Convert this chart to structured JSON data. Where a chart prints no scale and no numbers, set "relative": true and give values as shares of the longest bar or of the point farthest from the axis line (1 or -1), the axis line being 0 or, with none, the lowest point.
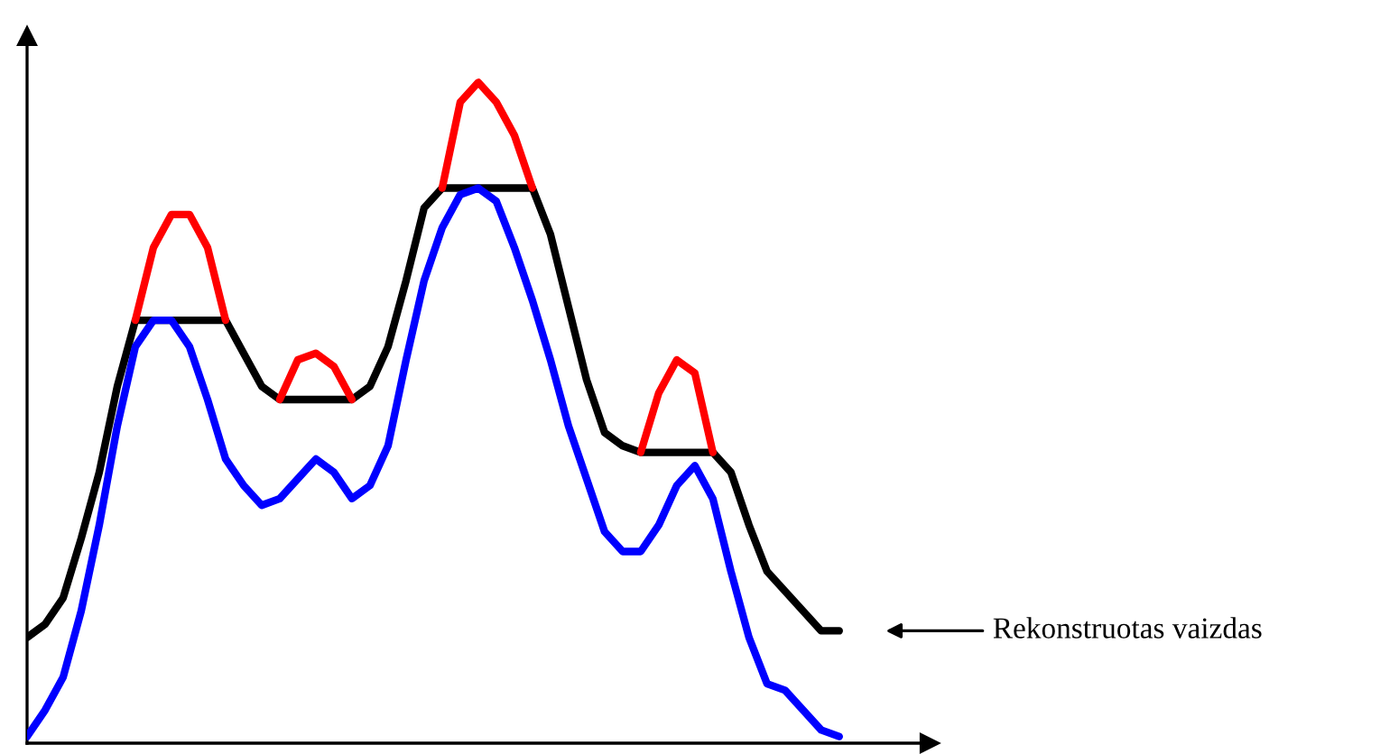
{
  "chart_data": {
    "type": "line",
    "relative": true,
    "categories": [
      null,
      null,
      null,
      null,
      null,
      null,
      null,
      null,
      null,
      null,
      null,
      null,
      null,
      null,
      null,
      null,
      null,
      null,
      null,
      null,
      null,
      null,
      null,
      null,
      null,
      null,
      null,
      null,
      null,
      null,
      null,
      null,
      null,
      null,
      null,
      null,
      null,
      null,
      null,
      null,
      null,
      null,
      null,
      null,
      null,
      null
    ],
    "series": [
      {
        "color": "#ff0000",
        "values": [
          null,
          null,
          null,
          null,
          null,
          null,
          0.64,
          0.75,
          0.8,
          0.8,
          0.75,
          0.64,
          null,
          null,
          0.52,
          0.58,
          0.59,
          0.57,
          0.52,
          null,
          null,
          null,
          null,
          0.84,
          0.97,
          1.0,
          0.97,
          0.92,
          0.84,
          null,
          null,
          null,
          null,
          null,
          0.44,
          0.53,
          0.58,
          0.56,
          0.44,
          null,
          null,
          null,
          null,
          null,
          null,
          null
        ]
      },
      {
        "color": "#000000",
        "values": [
          0.16,
          0.18,
          0.22,
          0.31,
          0.41,
          0.54,
          0.64,
          0.64,
          0.64,
          0.64,
          0.64,
          0.64,
          0.59,
          0.54,
          0.52,
          0.52,
          0.52,
          0.52,
          0.52,
          0.54,
          0.6,
          0.7,
          0.81,
          0.84,
          0.84,
          0.84,
          0.84,
          0.84,
          0.84,
          0.77,
          0.66,
          0.55,
          0.47,
          0.45,
          0.44,
          0.44,
          0.44,
          0.44,
          0.44,
          0.41,
          0.33,
          0.26,
          0.23,
          0.2,
          0.17,
          0.17
        ]
      },
      {
        "color": "#0000ff",
        "values": [
          0.01,
          0.05,
          0.1,
          0.2,
          0.33,
          0.48,
          0.6,
          0.64,
          0.64,
          0.6,
          0.52,
          0.43,
          0.39,
          0.36,
          0.37,
          0.4,
          0.43,
          0.41,
          0.37,
          0.39,
          0.45,
          0.58,
          0.7,
          0.78,
          0.83,
          0.84,
          0.82,
          0.75,
          0.67,
          0.58,
          0.48,
          0.4,
          0.32,
          0.29,
          0.29,
          0.33,
          0.39,
          0.42,
          0.37,
          0.26,
          0.16,
          0.09,
          0.08,
          0.05,
          0.02,
          0.01
        ]
      }
    ],
    "annotations": [
      "Rekonstruotas vaizdas"
    ],
    "marker": "none",
    "line_style": "solid"
  }
}
